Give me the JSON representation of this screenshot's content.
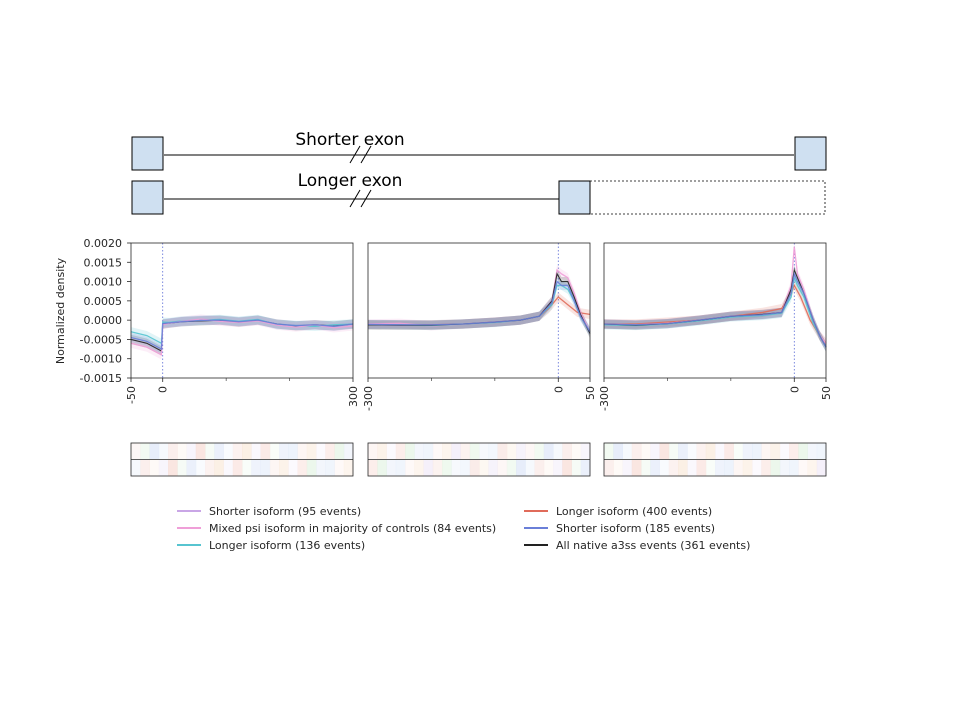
{
  "diagram": {
    "shorter_label": "Shorter exon",
    "longer_label": "Longer exon"
  },
  "colors": {
    "shorter_95": "#c9a6e6",
    "mixed_84": "#ef9fd8",
    "longer_136": "#57c4d0",
    "longer_400": "#e06b5a",
    "shorter_185": "#6a7fd8",
    "all_native": "#222222",
    "exon_fill": "#cfe0f1"
  },
  "chart_data": {
    "type": "line",
    "ylabel": "Normalized density",
    "ylim": [
      -0.0015,
      0.002
    ],
    "yticks": [
      "0.0020",
      "0.0015",
      "0.0010",
      "0.0005",
      "0.0000",
      "-0.0005",
      "-0.0010",
      "-0.0015"
    ],
    "ytick_values": [
      0.002,
      0.0015,
      0.001,
      0.0005,
      0.0,
      -0.0005,
      -0.001,
      -0.0015
    ],
    "legend": [
      {
        "label": "Shorter isoform (95 events)",
        "color_key": "shorter_95"
      },
      {
        "label": "Mixed psi isoform in majority of controls (84 events)",
        "color_key": "mixed_84"
      },
      {
        "label": "Longer isoform (136 events)",
        "color_key": "longer_136"
      },
      {
        "label": "Longer isoform (400 events)",
        "color_key": "longer_400"
      },
      {
        "label": "Shorter isoform (185 events)",
        "color_key": "shorter_185"
      },
      {
        "label": "All native a3ss events (361 events)",
        "color_key": "all_native"
      }
    ],
    "panels": [
      {
        "xlim": [
          -50,
          300
        ],
        "xtick_labels": [
          "-50",
          "0",
          "300"
        ],
        "xtick_values": [
          -50,
          0,
          300
        ],
        "minor_ticks": [
          100,
          200
        ],
        "vline": 0,
        "series": [
          {
            "key": "all_native",
            "x": [
              -50,
              -25,
              -2,
              0,
              10,
              30,
              60,
              90,
              120,
              150,
              180,
              210,
              240,
              270,
              300
            ],
            "y": [
              -0.0005,
              -0.0006,
              -0.0008,
              -0.0001,
              -8e-05,
              -4e-05,
              -2e-05,
              0.0,
              -5e-05,
              0.0,
              -0.0001,
              -0.00015,
              -0.00012,
              -0.00015,
              -0.0001
            ]
          },
          {
            "key": "longer_136",
            "x": [
              -50,
              -25,
              -2,
              0,
              10,
              30,
              60,
              90,
              120,
              150,
              180,
              210,
              240,
              270,
              300
            ],
            "y": [
              -0.0003,
              -0.0004,
              -0.0006,
              -5e-05,
              -6e-05,
              -2e-05,
              0.0,
              2e-05,
              -3e-05,
              2e-05,
              -0.00012,
              -0.00014,
              -0.00016,
              -0.00012,
              -0.0001
            ]
          },
          {
            "key": "mixed_84",
            "x": [
              -50,
              -25,
              -2,
              0,
              10,
              30,
              60,
              90,
              120,
              150,
              180,
              210,
              240,
              270,
              300
            ],
            "y": [
              -0.0006,
              -0.0007,
              -0.0009,
              -0.00012,
              -8e-05,
              -3e-05,
              3e-05,
              -3e-05,
              -6e-05,
              -2e-05,
              -0.00013,
              -0.00018,
              -0.00012,
              -0.0002,
              -0.00015
            ]
          },
          {
            "key": "shorter_185",
            "x": [
              -50,
              -25,
              -2,
              0,
              10,
              30,
              60,
              90,
              120,
              150,
              180,
              210,
              240,
              270,
              300
            ],
            "y": [
              -0.00045,
              -0.00055,
              -0.00075,
              -9e-05,
              -7e-05,
              -4e-05,
              -1e-05,
              0.0,
              -4e-05,
              0.0,
              -0.0001,
              -0.00014,
              -0.00012,
              -0.00016,
              -0.0001
            ]
          }
        ]
      },
      {
        "xlim": [
          -300,
          50
        ],
        "xtick_labels": [
          "-300",
          "0",
          "50"
        ],
        "xtick_values": [
          -300,
          0,
          50
        ],
        "minor_ticks": [
          -200,
          -100
        ],
        "vline": 0,
        "series": [
          {
            "key": "longer_400",
            "x": [
              -300,
              -250,
              -200,
              -150,
              -100,
              -60,
              -30,
              -15,
              0,
              15,
              30,
              50
            ],
            "y": [
              -0.00012,
              -0.00012,
              -0.00012,
              -0.0001,
              -5e-05,
              0.0,
              0.0001,
              0.0003,
              0.0006,
              0.0004,
              0.0002,
              0.00015
            ]
          },
          {
            "key": "mixed_84",
            "x": [
              -300,
              -250,
              -200,
              -150,
              -100,
              -60,
              -30,
              -10,
              -2,
              5,
              15,
              25,
              35,
              50
            ],
            "y": [
              -0.0001,
              -8e-05,
              -0.00015,
              -0.0001,
              -5e-05,
              0.0,
              0.0001,
              0.0005,
              0.0013,
              0.0012,
              0.0011,
              0.0007,
              0.0002,
              -0.0003
            ]
          },
          {
            "key": "longer_136",
            "x": [
              -300,
              -250,
              -200,
              -150,
              -100,
              -60,
              -30,
              -10,
              -2,
              5,
              15,
              25,
              35,
              50
            ],
            "y": [
              -0.00012,
              -0.00012,
              -0.00014,
              -0.0001,
              -6e-05,
              0.0,
              0.0001,
              0.0004,
              0.0009,
              0.0009,
              0.0008,
              0.0005,
              0.0001,
              -0.0003
            ]
          },
          {
            "key": "all_native",
            "x": [
              -300,
              -250,
              -200,
              -150,
              -100,
              -60,
              -30,
              -10,
              -2,
              5,
              15,
              25,
              35,
              50
            ],
            "y": [
              -0.00012,
              -0.00013,
              -0.00013,
              -0.0001,
              -5e-05,
              0.0,
              0.0001,
              0.0005,
              0.0012,
              0.001,
              0.001,
              0.0006,
              0.00015,
              -0.00035
            ]
          },
          {
            "key": "shorter_185",
            "x": [
              -300,
              -250,
              -200,
              -150,
              -100,
              -60,
              -30,
              -10,
              -2,
              5,
              15,
              25,
              35,
              50
            ],
            "y": [
              -0.00011,
              -0.00012,
              -0.00012,
              -0.0001,
              -5e-05,
              0.0,
              0.0001,
              0.00045,
              0.001,
              0.0009,
              0.0009,
              0.0005,
              0.0001,
              -0.0003
            ]
          }
        ]
      },
      {
        "xlim": [
          -300,
          50
        ],
        "xtick_labels": [
          "-300",
          "0",
          "50"
        ],
        "xtick_values": [
          -300,
          0,
          50
        ],
        "minor_ticks": [
          -200,
          -100
        ],
        "vline": 0,
        "series": [
          {
            "key": "longer_400",
            "x": [
              -300,
              -250,
              -200,
              -150,
              -100,
              -50,
              -20,
              -5,
              0,
              10,
              25,
              40,
              50
            ],
            "y": [
              -0.0001,
              -0.0001,
              -5e-05,
              0.0,
              0.0001,
              0.0002,
              0.0003,
              0.0007,
              0.0009,
              0.0006,
              0.0,
              -0.0004,
              -0.0006
            ]
          },
          {
            "key": "mixed_84",
            "x": [
              -300,
              -250,
              -200,
              -150,
              -100,
              -50,
              -20,
              -5,
              0,
              5,
              15,
              30,
              40,
              50
            ],
            "y": [
              -0.0001,
              -0.00012,
              -8e-05,
              0.0,
              0.0001,
              0.00015,
              0.0002,
              0.0009,
              0.0019,
              0.0012,
              0.0008,
              0.0,
              -0.0004,
              -0.0006
            ]
          },
          {
            "key": "longer_136",
            "x": [
              -300,
              -250,
              -200,
              -150,
              -100,
              -50,
              -20,
              -5,
              0,
              5,
              15,
              30,
              40,
              50
            ],
            "y": [
              -0.00012,
              -0.00014,
              -0.0001,
              -2e-05,
              8e-05,
              0.00012,
              0.00018,
              0.0006,
              0.0011,
              0.0009,
              0.0006,
              -0.0001,
              -0.0004,
              -0.0007
            ]
          },
          {
            "key": "all_native",
            "x": [
              -300,
              -250,
              -200,
              -150,
              -100,
              -50,
              -20,
              -5,
              0,
              5,
              15,
              30,
              40,
              50
            ],
            "y": [
              -0.0001,
              -0.00013,
              -9e-05,
              0.0,
              0.0001,
              0.00015,
              0.0002,
              0.0008,
              0.0013,
              0.0011,
              0.0007,
              0.0,
              -0.0004,
              -0.0007
            ]
          },
          {
            "key": "shorter_185",
            "x": [
              -300,
              -250,
              -200,
              -150,
              -100,
              -50,
              -20,
              -5,
              0,
              5,
              15,
              30,
              40,
              50
            ],
            "y": [
              -0.0001,
              -0.00012,
              -9e-05,
              0.0,
              0.0001,
              0.00014,
              0.0002,
              0.0007,
              0.0012,
              0.001,
              0.0007,
              0.0,
              -0.0004,
              -0.0007
            ]
          }
        ]
      }
    ]
  }
}
